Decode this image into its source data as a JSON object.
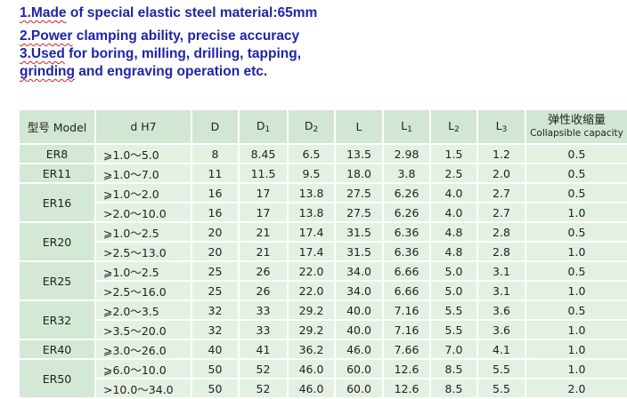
{
  "intro": {
    "line1": {
      "lead": "1.Made",
      "rest": " of special elastic steel material:65mm"
    },
    "line2": {
      "lead": "2.Power",
      "rest": " clamping ability, precise accuracy"
    },
    "line3": {
      "lead": "3.Used",
      "rest": " for boring, milling, drilling, tapping,"
    },
    "line4": {
      "lead": "grinding",
      "rest": " and engraving operation etc."
    }
  },
  "table": {
    "headers": {
      "model": "型号 Model",
      "dh7": "d H7",
      "d": "D",
      "d1_base": "D",
      "d1_sub": "1",
      "d2_base": "D",
      "d2_sub": "2",
      "l": "L",
      "l1_base": "L",
      "l1_sub": "1",
      "l2_base": "L",
      "l2_sub": "2",
      "l3_base": "L",
      "l3_sub": "3",
      "collapsible_cn": "弹性收缩量",
      "collapsible_en": "Collapsible capacity"
    },
    "groups": [
      {
        "model": "ER8",
        "rows": [
          {
            "dh7": "⩾1.0～5.0",
            "D": "8",
            "D1": "8.45",
            "D2": "6.5",
            "L": "13.5",
            "L1": "2.98",
            "L2": "1.5",
            "L3": "1.2",
            "cap": "0.5"
          }
        ]
      },
      {
        "model": "ER11",
        "rows": [
          {
            "dh7": "⩾1.0～7.0",
            "D": "11",
            "D1": "11.5",
            "D2": "9.5",
            "L": "18.0",
            "L1": "3.8",
            "L2": "2.5",
            "L3": "2.0",
            "cap": "0.5"
          }
        ]
      },
      {
        "model": "ER16",
        "rows": [
          {
            "dh7": "⩾1.0～2.0",
            "D": "16",
            "D1": "17",
            "D2": "13.8",
            "L": "27.5",
            "L1": "6.26",
            "L2": "4.0",
            "L3": "2.7",
            "cap": "0.5"
          },
          {
            "dh7": ">2.0～10.0",
            "D": "16",
            "D1": "17",
            "D2": "13.8",
            "L": "27.5",
            "L1": "6.26",
            "L2": "4.0",
            "L3": "2.7",
            "cap": "1.0"
          }
        ]
      },
      {
        "model": "ER20",
        "rows": [
          {
            "dh7": "⩾1.0～2.5",
            "D": "20",
            "D1": "21",
            "D2": "17.4",
            "L": "31.5",
            "L1": "6.36",
            "L2": "4.8",
            "L3": "2.8",
            "cap": "0.5"
          },
          {
            "dh7": ">2.5～13.0",
            "D": "20",
            "D1": "21",
            "D2": "17.4",
            "L": "31.5",
            "L1": "6.36",
            "L2": "4.8",
            "L3": "2.8",
            "cap": "1.0"
          }
        ]
      },
      {
        "model": "ER25",
        "rows": [
          {
            "dh7": "⩾1.0～2.5",
            "D": "25",
            "D1": "26",
            "D2": "22.0",
            "L": "34.0",
            "L1": "6.66",
            "L2": "5.0",
            "L3": "3.1",
            "cap": "0.5"
          },
          {
            "dh7": ">2.5～16.0",
            "D": "25",
            "D1": "26",
            "D2": "22.0",
            "L": "34.0",
            "L1": "6.66",
            "L2": "5.0",
            "L3": "3.1",
            "cap": "1.0"
          }
        ]
      },
      {
        "model": "ER32",
        "rows": [
          {
            "dh7": "⩾2.0～3.5",
            "D": "32",
            "D1": "33",
            "D2": "29.2",
            "L": "40.0",
            "L1": "7.16",
            "L2": "5.5",
            "L3": "3.6",
            "cap": "0.5"
          },
          {
            "dh7": ">3.5～20.0",
            "D": "32",
            "D1": "33",
            "D2": "29.2",
            "L": "40.0",
            "L1": "7.16",
            "L2": "5.5",
            "L3": "3.6",
            "cap": "1.0"
          }
        ]
      },
      {
        "model": "ER40",
        "rows": [
          {
            "dh7": "⩾3.0～26.0",
            "D": "40",
            "D1": "41",
            "D2": "36.2",
            "L": "46.0",
            "L1": "7.66",
            "L2": "7.0",
            "L3": "4.1",
            "cap": "1.0"
          }
        ]
      },
      {
        "model": "ER50",
        "rows": [
          {
            "dh7": "⩾6.0～10.0",
            "D": "50",
            "D1": "52",
            "D2": "46.0",
            "L": "60.0",
            "L1": "12.6",
            "L2": "8.5",
            "L3": "5.5",
            "cap": "1.0"
          },
          {
            "dh7": ">10.0～34.0",
            "D": "50",
            "D1": "52",
            "D2": "46.0",
            "L": "60.0",
            "L1": "12.6",
            "L2": "8.5",
            "L3": "5.5",
            "cap": "2.0"
          }
        ]
      }
    ]
  }
}
